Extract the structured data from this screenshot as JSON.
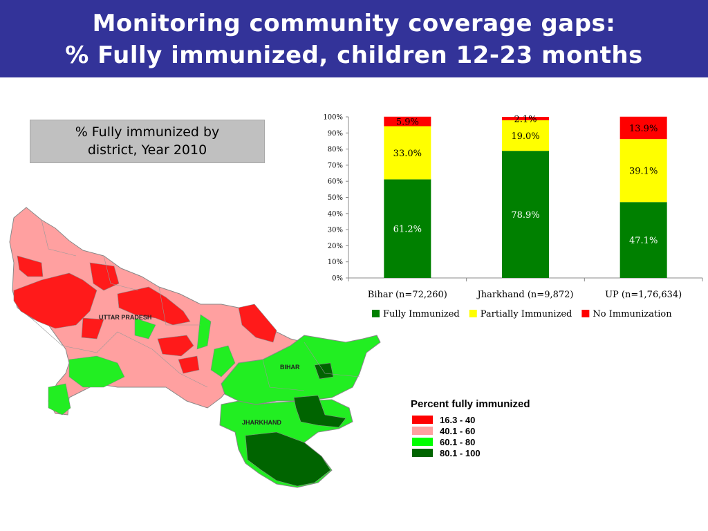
{
  "header": {
    "line1": "Monitoring community coverage gaps:",
    "line2": "% Fully immunized, children 12-23 months"
  },
  "map_box": {
    "line1": "% Fully immunized by",
    "line2": "district, Year 2010"
  },
  "map": {
    "labels": [
      "UTTAR PRADESH",
      "BIHAR",
      "JHARKHAND"
    ]
  },
  "map_legend": {
    "title": "Percent fully immunized",
    "items": [
      {
        "label": "16.3 - 40",
        "color": "#ff0000"
      },
      {
        "label": "40.1 - 60",
        "color": "#ffa0a0"
      },
      {
        "label": "60.1 - 80",
        "color": "#00ff00"
      },
      {
        "label": "80.1 - 100",
        "color": "#006400"
      }
    ]
  },
  "chart_data": {
    "type": "bar",
    "stacked": true,
    "categories": [
      "Bihar (n=72,260)",
      "Jharkhand (n=9,872)",
      "UP (n=1,76,634)"
    ],
    "series": [
      {
        "name": "Fully Immunized",
        "color": "#008000",
        "values": [
          61.2,
          78.9,
          47.1
        ],
        "labels": [
          "61.2%",
          "78.9%",
          "47.1%"
        ],
        "label_color": "#ffffff"
      },
      {
        "name": "Partially Immunized",
        "color": "#ffff00",
        "values": [
          33.0,
          19.0,
          39.1
        ],
        "labels": [
          "33.0%",
          "19.0%",
          "39.1%"
        ],
        "label_color": "#000000"
      },
      {
        "name": "No Immunization",
        "color": "#ff0000",
        "values": [
          5.9,
          2.1,
          13.9
        ],
        "labels": [
          "5.9%",
          "2.1%",
          "13.9%"
        ],
        "label_color": "#000000"
      }
    ],
    "ylim": [
      0,
      100
    ],
    "yticks": [
      "0%",
      "10%",
      "20%",
      "30%",
      "40%",
      "50%",
      "60%",
      "70%",
      "80%",
      "90%",
      "100%"
    ],
    "legend": "bottom",
    "grid": false
  }
}
